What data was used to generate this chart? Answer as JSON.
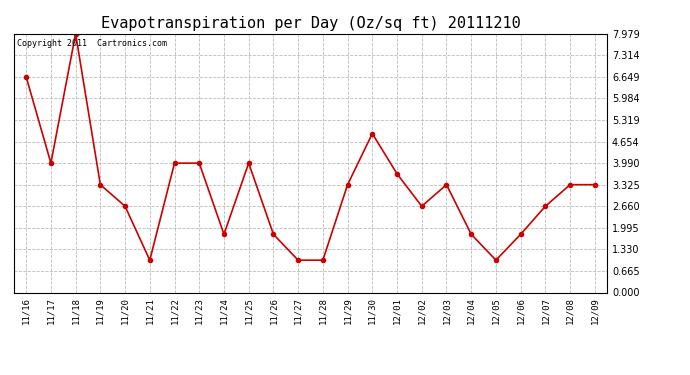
{
  "title": "Evapotranspiration per Day (Oz/sq ft) 20111210",
  "copyright": "Copyright 2011  Cartronics.com",
  "x_labels": [
    "11/16",
    "11/17",
    "11/18",
    "11/19",
    "11/20",
    "11/21",
    "11/22",
    "11/23",
    "11/24",
    "11/25",
    "11/26",
    "11/27",
    "11/28",
    "11/29",
    "11/30",
    "12/01",
    "12/02",
    "12/03",
    "12/04",
    "12/05",
    "12/06",
    "12/07",
    "12/08",
    "12/09"
  ],
  "y_values": [
    6.649,
    3.99,
    7.979,
    3.325,
    2.66,
    0.997,
    3.99,
    3.99,
    1.795,
    3.99,
    1.795,
    0.997,
    0.997,
    3.325,
    4.9,
    3.66,
    2.66,
    3.325,
    1.795,
    0.997,
    1.795,
    2.66,
    3.325,
    3.325
  ],
  "line_color": "#cc0000",
  "marker": "o",
  "marker_size": 3,
  "ylim": [
    0.0,
    7.979
  ],
  "yticks": [
    0.0,
    0.665,
    1.33,
    1.995,
    2.66,
    3.325,
    3.99,
    4.654,
    5.319,
    5.984,
    6.649,
    7.314,
    7.979
  ],
  "background_color": "#ffffff",
  "grid_color": "#bbbbbb",
  "title_fontsize": 11,
  "copyright_fontsize": 6,
  "xtick_fontsize": 6.5,
  "ytick_fontsize": 7
}
